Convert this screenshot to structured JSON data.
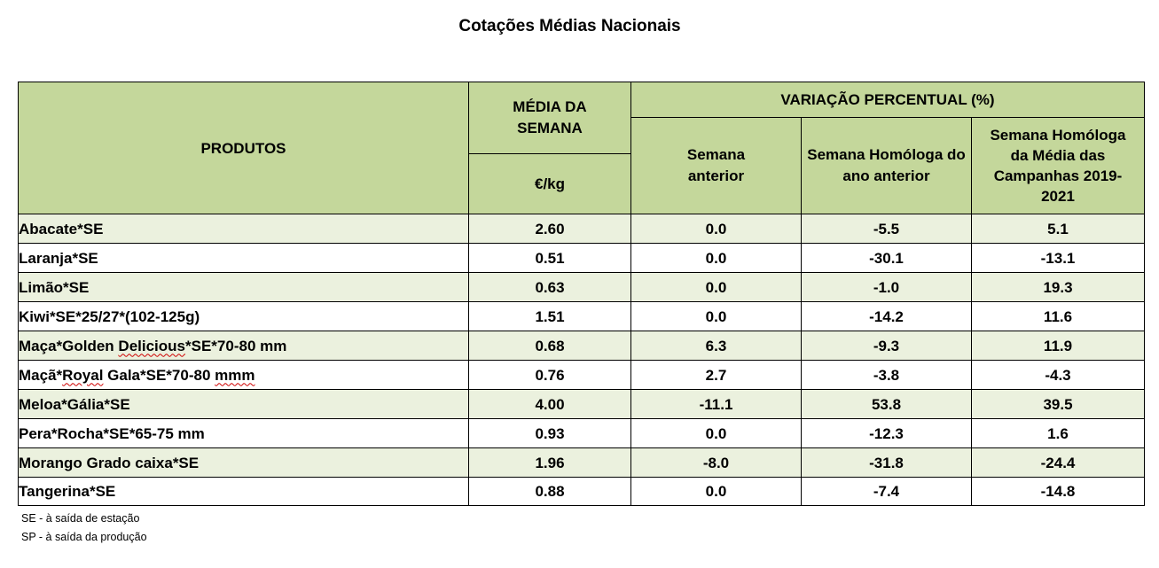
{
  "title": "Cotações Médias Nacionais",
  "table": {
    "headers": {
      "produtos": "PRODUTOS",
      "media_semana": "MÉDIA DA SEMANA",
      "unit": "€/kg",
      "variacao": "VARIAÇÃO PERCENTUAL (%)",
      "semana_anterior": "Semana anterior",
      "semana_homologa": "Semana Homóloga do ano anterior",
      "semana_homologa_media": "Semana Homóloga da Média das Campanhas 2019-2021"
    },
    "rows": [
      {
        "product": "Abacate*SE",
        "media": "2.60",
        "semana_anterior": "0.0",
        "homologa": "-5.5",
        "homologa_media": "5.1"
      },
      {
        "product": "Laranja*SE",
        "media": "0.51",
        "semana_anterior": "0.0",
        "homologa": "-30.1",
        "homologa_media": "-13.1"
      },
      {
        "product": "Limão*SE",
        "media": "0.63",
        "semana_anterior": "0.0",
        "homologa": "-1.0",
        "homologa_media": "19.3"
      },
      {
        "product": "Kiwi*SE*25/27*(102-125g)",
        "media": "1.51",
        "semana_anterior": "0.0",
        "homologa": "-14.2",
        "homologa_media": "11.6"
      },
      {
        "product_pre": "Maça*Golden ",
        "product_sq": "Delicious",
        "product_post": "*SE*70-80 mm",
        "media": "0.68",
        "semana_anterior": "6.3",
        "homologa": "-9.3",
        "homologa_media": "11.9"
      },
      {
        "product_pre": "Maçã*",
        "product_sq": "Royal",
        "product_mid": " Gala*SE*70-80 ",
        "product_sq2": "mmm",
        "media": "0.76",
        "semana_anterior": "2.7",
        "homologa": "-3.8",
        "homologa_media": "-4.3"
      },
      {
        "product": "Meloa*Gália*SE",
        "media": "4.00",
        "semana_anterior": "-11.1",
        "homologa": "53.8",
        "homologa_media": "39.5"
      },
      {
        "product": "Pera*Rocha*SE*65-75 mm",
        "media": "0.93",
        "semana_anterior": "0.0",
        "homologa": "-12.3",
        "homologa_media": "1.6"
      },
      {
        "product": "Morango Grado caixa*SE",
        "media": "1.96",
        "semana_anterior": "-8.0",
        "homologa": "-31.8",
        "homologa_media": "-24.4"
      },
      {
        "product": "Tangerina*SE",
        "media": "0.88",
        "semana_anterior": "0.0",
        "homologa": "-7.4",
        "homologa_media": "-14.8"
      }
    ]
  },
  "notes": [
    "SE - à saída de estação",
    "SP - à saída da produção"
  ]
}
